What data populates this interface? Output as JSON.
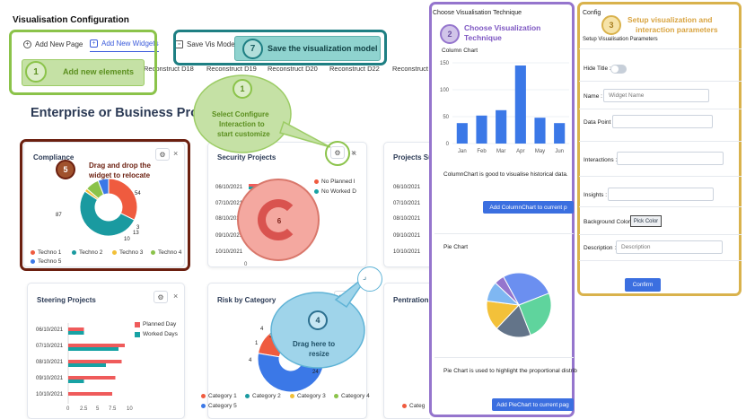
{
  "page": {
    "title": "Visualisation Configuration",
    "enterprise_title": "Enterprise or Business Project S"
  },
  "tabs": {
    "add_page": "Add New Page",
    "add_widgets": "Add New Widgets",
    "save_vis": "Save Vis Model",
    "reconstruct": [
      "Reconstruct D18",
      "Reconstruct D19",
      "Reconstruct D20",
      "Reconstruct D22",
      "Reconstruct"
    ]
  },
  "callouts": {
    "c1a": {
      "num": "1",
      "text": "Add new elements"
    },
    "c7": {
      "num": "7",
      "text": "Save the visualization model"
    },
    "c1b": {
      "num": "1",
      "line1": "Select Configure",
      "line2": "Interaction to",
      "line3": "start customize"
    },
    "c5": {
      "num": "5",
      "line1": "Drag and drop the",
      "line2": "widget to relocate"
    },
    "c6": {
      "num": "6"
    },
    "c4": {
      "num": "4",
      "line1": "Drag here to",
      "line2": "resize"
    },
    "c2": {
      "num": "2",
      "line1": "Choose Visualization",
      "line2": "Technique"
    },
    "c3": {
      "num": "3",
      "line1": "Setup visualization and",
      "line2": "interaction parameters"
    }
  },
  "colors": {
    "red": "#ef5b3f",
    "teal": "#1a9aa0",
    "yellow": "#f2c037",
    "lime": "#8bc34a",
    "blue": "#3b78e7",
    "planned": "#ef5b5b",
    "worked": "#17a2a4",
    "purple_accent": "#9575cd",
    "gold_accent": "#d9a441"
  },
  "compliance": {
    "title": "Compliance",
    "labels": [
      "54",
      "87",
      "3",
      "13",
      "10"
    ],
    "legend": [
      "Techno 1",
      "Techno 2",
      "Techno 3",
      "Techno 4",
      "Techno 5"
    ],
    "chart_data": {
      "type": "pie",
      "categories": [
        "Techno 1",
        "Techno 2",
        "Techno 3",
        "Techno 4",
        "Techno 5"
      ],
      "values": [
        54,
        87,
        3,
        13,
        10
      ]
    }
  },
  "security": {
    "title": "Security Projects",
    "legend": [
      "No Planned I",
      "No Worked D"
    ],
    "dates": [
      "06/10/2021",
      "07/10/2021",
      "08/10/2021",
      "09/10/2021",
      "10/10/2021"
    ],
    "axis_zero": "0"
  },
  "projects_su": {
    "title": "Projects Su",
    "dates": [
      "06/10/2021",
      "07/10/2021",
      "08/10/2021",
      "09/10/2021",
      "10/10/2021"
    ]
  },
  "steering": {
    "title": "Steering Projects",
    "legend": [
      "Planned Day",
      "Worked Days"
    ],
    "ticks": [
      "0",
      "2.5",
      "5",
      "7.5",
      "10"
    ],
    "chart_data": {
      "type": "bar",
      "orientation": "horizontal",
      "categories": [
        "06/10/2021",
        "07/10/2021",
        "08/10/2021",
        "09/10/2021",
        "10/10/2021"
      ],
      "series": [
        {
          "name": "Planned Day",
          "values": [
            2.5,
            9,
            8.5,
            7.5,
            7
          ]
        },
        {
          "name": "Worked Days",
          "values": [
            2.5,
            8,
            6,
            2.5,
            0
          ]
        }
      ],
      "xlim": [
        0,
        10
      ]
    }
  },
  "risk": {
    "title": "Risk by Category",
    "labels": [
      "4",
      "1",
      "3",
      "4",
      "24"
    ],
    "legend": [
      "Category 1",
      "Category 2",
      "Category 3",
      "Category 4",
      "Category 5"
    ],
    "chart_data": {
      "type": "pie",
      "categories": [
        "Category 1",
        "Category 2",
        "Category 3",
        "Category 4",
        "Category 5"
      ],
      "values": [
        4,
        1,
        3,
        4,
        24
      ]
    }
  },
  "pentration": {
    "title": "Pentration",
    "legend": "Categ"
  },
  "technique_panel": {
    "header": "Choose Visualisation Technique",
    "column": {
      "title": "Column Chart",
      "desc": "ColumnChart is good to visualise historical data.",
      "button": "Add ColumnChart to current p",
      "chart_data": {
        "type": "bar",
        "categories": [
          "Jan",
          "Feb",
          "Mar",
          "Apr",
          "May",
          "Jun"
        ],
        "values": [
          38,
          52,
          62,
          145,
          48,
          38
        ],
        "ylim": [
          0,
          150
        ],
        "yticks": [
          "0",
          "50",
          "100",
          "150"
        ]
      }
    },
    "pie": {
      "title": "Pie Chart",
      "desc": "Pie Chart is used to highlight the proportional distrib",
      "button": "Add PieChart to current pag",
      "chart_data": {
        "type": "pie",
        "values": [
          27,
          25,
          18,
          15,
          10,
          5
        ],
        "labels": [
          "27",
          "25",
          "18",
          "15",
          "10",
          "5"
        ],
        "colors": [
          "#6b8ff0",
          "#5fd49d",
          "#637489",
          "#f3c13a",
          "#7fb7f2",
          "#9575cd"
        ]
      }
    }
  },
  "config_panel": {
    "header": "Config",
    "subtitle": "Setup Visualisation Parameters",
    "hide_title": "Hide Title :",
    "name_label": "Name :",
    "name_placeholder": "Widget Name",
    "datapoint_label": "Data Point :",
    "interactions_label": "Interactions :",
    "insights_label": "Insights :",
    "bg_label": "Background Color :",
    "pick_color": "Pick Color",
    "desc_label": "Description :",
    "desc_placeholder": "Description",
    "confirm": "Confirm"
  }
}
